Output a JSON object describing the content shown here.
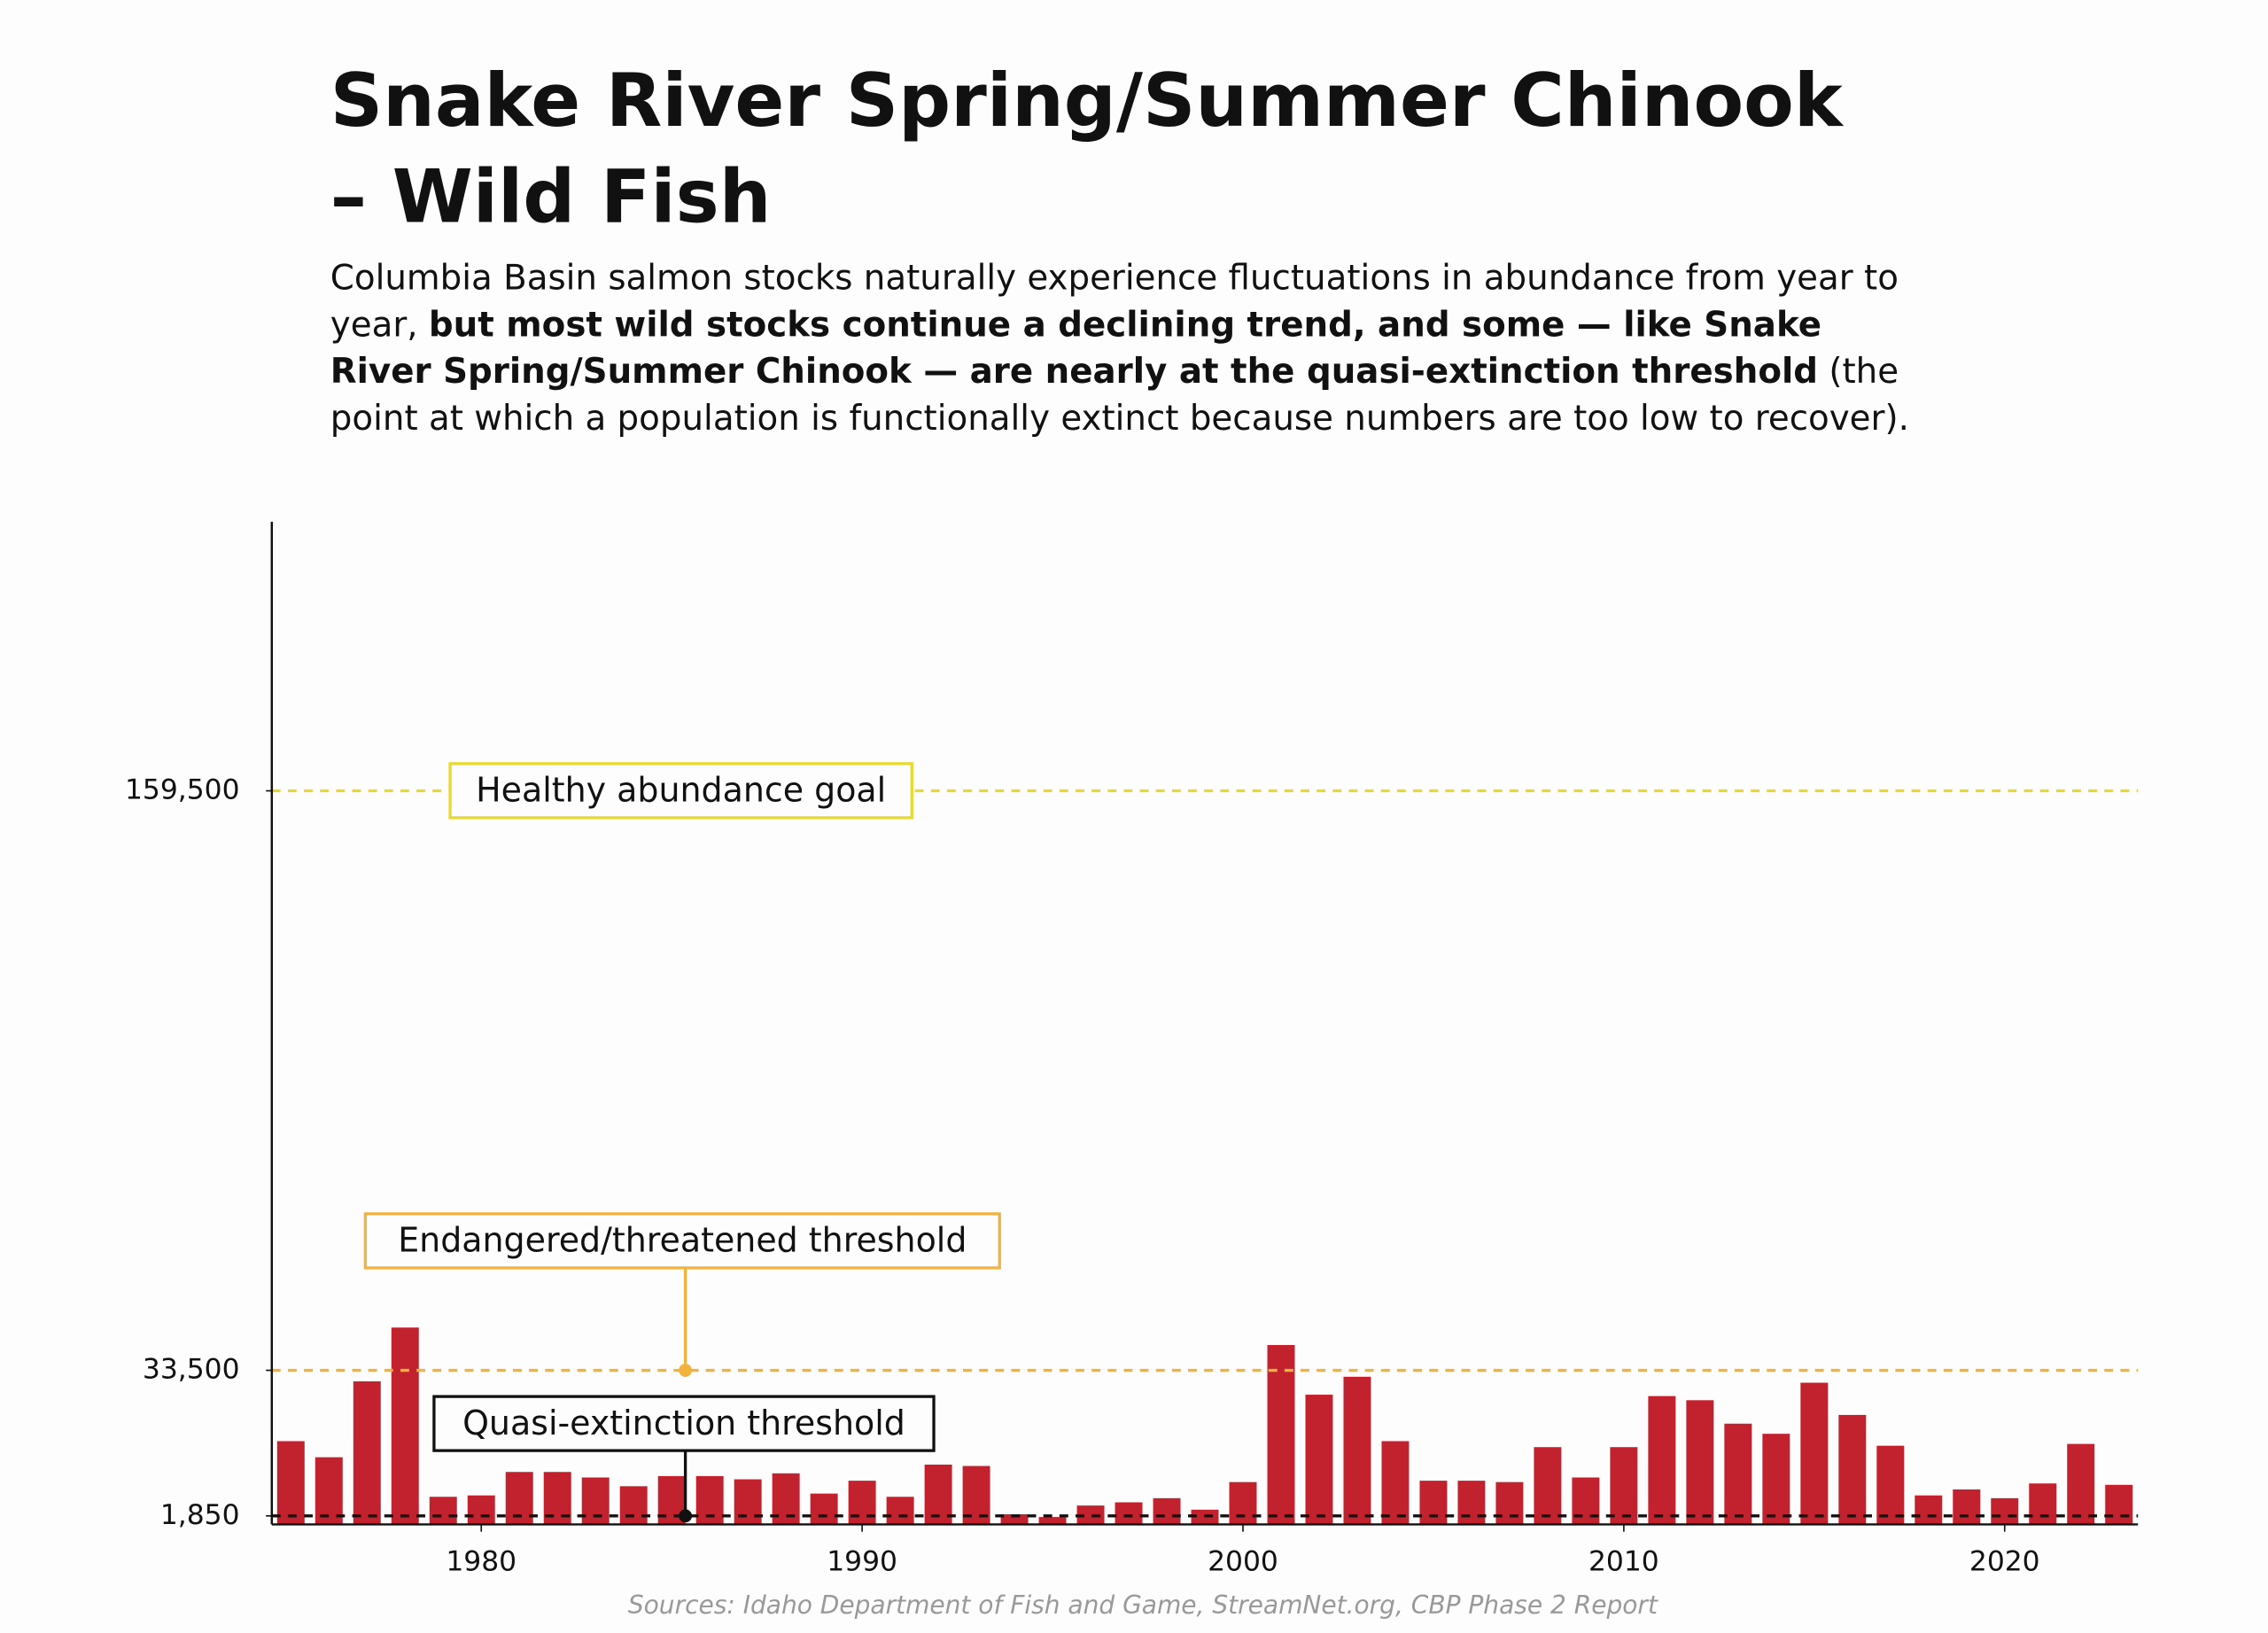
{
  "chart_data": {
    "type": "bar",
    "title": "Snake River Spring/Summer Chinook – Wild Fish",
    "subtitle": [
      {
        "text": "Columbia Basin salmon stocks naturally experience fluctuations in abundance from year to year, ",
        "bold": false
      },
      {
        "text": "but most wild stocks continue a declining trend, and some — like Snake River Spring/Summer Chinook — are nearly at the quasi-extinction threshold",
        "bold": true
      },
      {
        "text": " (the point at which a population is functionally extinct because numbers are too low to recover).",
        "bold": false
      }
    ],
    "source": "Sources: Idaho Department of Fish and Game, StreamNet.org, CBP Phase 2 Report",
    "x": [
      1975,
      1976,
      1977,
      1978,
      1979,
      1980,
      1981,
      1982,
      1983,
      1984,
      1985,
      1986,
      1987,
      1988,
      1989,
      1990,
      1991,
      1992,
      1993,
      1994,
      1995,
      1996,
      1997,
      1998,
      1999,
      2000,
      2001,
      2002,
      2003,
      2004,
      2005,
      2006,
      2007,
      2008,
      2009,
      2010,
      2011,
      2012,
      2013,
      2014,
      2015,
      2016,
      2017,
      2018,
      2019,
      2020,
      2021,
      2022,
      2023
    ],
    "values": [
      18100,
      14600,
      31100,
      42800,
      6000,
      6300,
      11400,
      11400,
      10200,
      8300,
      10500,
      10500,
      9800,
      11100,
      6700,
      9500,
      6000,
      13000,
      12700,
      2200,
      1600,
      4100,
      4800,
      5700,
      3200,
      9200,
      39000,
      28200,
      32100,
      18100,
      9500,
      9500,
      9200,
      16800,
      10200,
      16800,
      27900,
      27000,
      21900,
      19700,
      30800,
      23800,
      17100,
      6300,
      7600,
      5700,
      8900,
      17500,
      8600
    ],
    "color": "#c1222e",
    "xlim": [
      1974.5,
      2023.5
    ],
    "xticks": [
      1980,
      1990,
      2000,
      2010,
      2020
    ],
    "ylim": [
      0,
      218000
    ],
    "yticks": [
      {
        "value": 1850,
        "label": "1,850"
      },
      {
        "value": 33500,
        "label": "33,500"
      },
      {
        "value": 159500,
        "label": "159,500"
      }
    ],
    "reference_lines": [
      {
        "value": 159500,
        "label": "Healthy abundance goal",
        "color": "#e8d92e"
      },
      {
        "value": 33500,
        "label": "Endangered/threatened threshold",
        "color": "#f2b23e"
      },
      {
        "value": 1850,
        "label": "Quasi-extinction threshold",
        "color": "#111111"
      }
    ]
  }
}
